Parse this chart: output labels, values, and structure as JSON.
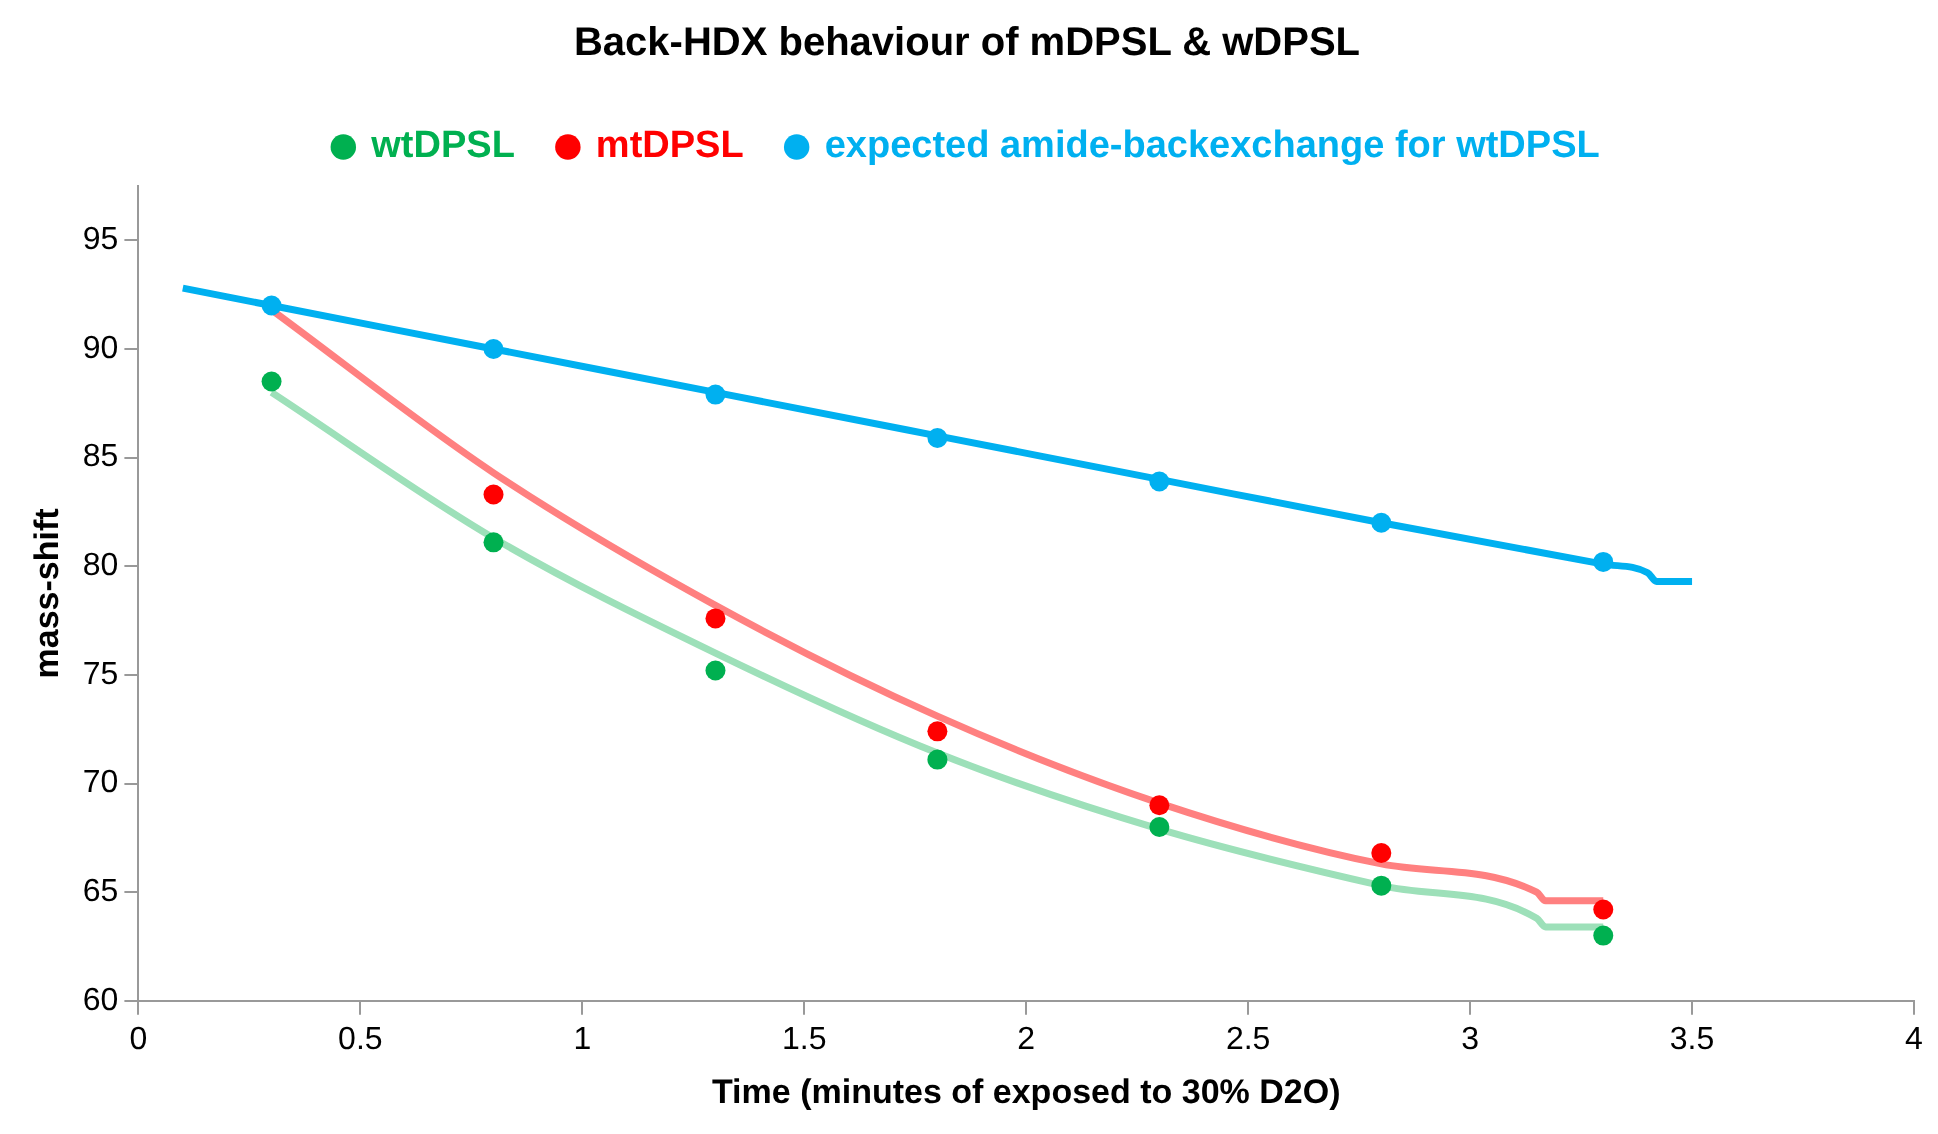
{
  "chart_data": {
    "type": "scatter",
    "title": "Back-HDX behaviour of mDPSL & wDPSL",
    "xlabel": "Time (minutes of exposed to 30% D2O)",
    "ylabel": "mass-shift",
    "xlim": [
      0,
      4
    ],
    "xticks": [
      0,
      0.5,
      1,
      1.5,
      2,
      2.5,
      3,
      3.5,
      4
    ],
    "ylim": [
      60,
      97.5
    ],
    "yticks": [
      60,
      65,
      70,
      75,
      80,
      85,
      90,
      95
    ],
    "grid": false,
    "legend": "top",
    "marker": "circle",
    "series": [
      {
        "type": "line",
        "marker": "none",
        "color": "#9de0b9",
        "x": [
          0.3,
          0.8,
          1.3,
          1.8,
          2.3,
          2.8,
          3.15,
          3.17,
          3.3
        ],
        "values": [
          88.0,
          81.3,
          76.0,
          71.4,
          67.9,
          65.3,
          63.8,
          63.4,
          63.4
        ]
      },
      {
        "type": "line",
        "marker": "none",
        "color": "#ff8080",
        "x": [
          0.3,
          0.8,
          1.3,
          1.8,
          2.3,
          2.8,
          3.15,
          3.17,
          3.3
        ],
        "values": [
          91.8,
          84.3,
          78.2,
          73.1,
          69.1,
          66.3,
          65.0,
          64.6,
          64.6
        ]
      },
      {
        "type": "line",
        "marker": "none",
        "color": "#00b0f0",
        "x": [
          0.1,
          0.3,
          0.8,
          1.3,
          1.8,
          2.3,
          2.8,
          3.3,
          3.4,
          3.42,
          3.5
        ],
        "values": [
          92.8,
          92.0,
          90.0,
          88.0,
          86.0,
          84.0,
          82.0,
          80.1,
          79.7,
          79.3,
          79.3
        ]
      },
      {
        "name": "wtDPSL",
        "color": "#00b050",
        "x": [
          0.3,
          0.8,
          1.3,
          1.8,
          2.3,
          2.8,
          3.3
        ],
        "values": [
          88.5,
          81.1,
          75.2,
          71.1,
          68.0,
          65.3,
          63.0
        ]
      },
      {
        "name": "mtDPSL",
        "color": "#ff0000",
        "x": [
          0.8,
          1.3,
          1.8,
          2.3,
          2.8,
          3.3
        ],
        "values": [
          83.3,
          77.6,
          72.4,
          69.0,
          66.8,
          64.2
        ]
      },
      {
        "name": "expected amide-backexchange for wtDPSL",
        "color": "#00b0f0",
        "x": [
          0.3,
          0.8,
          1.3,
          1.8,
          2.3,
          2.8,
          3.3
        ],
        "values": [
          92.0,
          90.0,
          87.9,
          85.9,
          83.9,
          82.0,
          80.2
        ]
      }
    ]
  }
}
